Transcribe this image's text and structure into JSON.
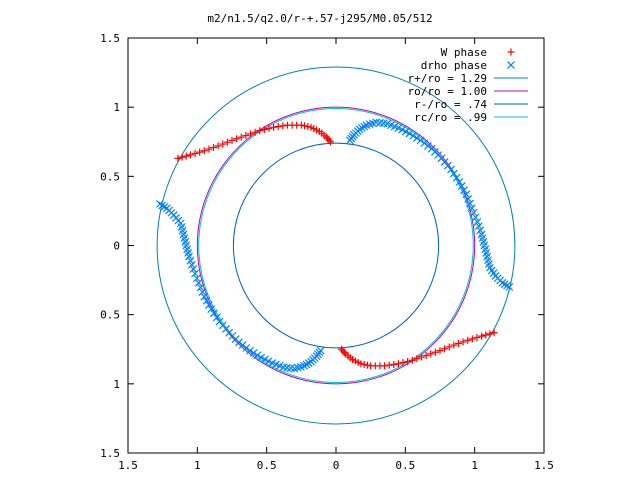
{
  "chart_data": {
    "type": "scatter",
    "title": "m2/n1.5/q2.0/r-+.57-j295/M0.05/512",
    "xlabel": "",
    "ylabel": "",
    "xlim": [
      -1.5,
      1.5
    ],
    "ylim": [
      -1.5,
      1.5
    ],
    "x_ticks": [
      -1.5,
      -1,
      -0.5,
      0,
      0.5,
      1,
      1.5
    ],
    "y_ticks": [
      -1.5,
      -1,
      -0.5,
      0,
      0.5,
      1,
      1.5
    ],
    "x_tick_labels": [
      "1.5",
      "1",
      "0.5",
      "0",
      "0.5",
      "1",
      "1.5"
    ],
    "y_tick_labels": [
      "1.5",
      "1",
      "0.5",
      "0",
      "0.5",
      "1",
      "1.5"
    ],
    "grid": false,
    "legend_position": "top-right",
    "series": [
      {
        "name": "W phase",
        "marker": "plus",
        "color": "#ff0000",
        "points": [
          [
            -1.14,
            0.63
          ],
          [
            -1.05,
            0.655
          ],
          [
            -0.95,
            0.685
          ],
          [
            -0.85,
            0.72
          ],
          [
            -0.75,
            0.76
          ],
          [
            -0.65,
            0.795
          ],
          [
            -0.55,
            0.83
          ],
          [
            -0.45,
            0.855
          ],
          [
            -0.35,
            0.87
          ],
          [
            -0.25,
            0.87
          ],
          [
            -0.18,
            0.855
          ],
          [
            -0.12,
            0.825
          ],
          [
            -0.07,
            0.785
          ],
          [
            -0.04,
            0.75
          ],
          [
            1.14,
            -0.63
          ],
          [
            1.05,
            -0.655
          ],
          [
            0.95,
            -0.685
          ],
          [
            0.85,
            -0.72
          ],
          [
            0.75,
            -0.76
          ],
          [
            0.65,
            -0.795
          ],
          [
            0.55,
            -0.83
          ],
          [
            0.45,
            -0.855
          ],
          [
            0.35,
            -0.87
          ],
          [
            0.25,
            -0.87
          ],
          [
            0.18,
            -0.855
          ],
          [
            0.12,
            -0.825
          ],
          [
            0.07,
            -0.785
          ],
          [
            0.04,
            -0.75
          ]
        ]
      },
      {
        "name": "drho phase",
        "marker": "cross",
        "color": "#0080ff",
        "points": [
          [
            -1.27,
            0.3
          ],
          [
            -1.22,
            0.27
          ],
          [
            -1.17,
            0.22
          ],
          [
            -1.12,
            0.16
          ],
          [
            -1.1,
            0.08
          ],
          [
            -1.08,
            0.0
          ],
          [
            -1.06,
            -0.08
          ],
          [
            -1.03,
            -0.17
          ],
          [
            -0.99,
            -0.27
          ],
          [
            -0.95,
            -0.37
          ],
          [
            -0.9,
            -0.46
          ],
          [
            -0.84,
            -0.55
          ],
          [
            -0.77,
            -0.63
          ],
          [
            -0.7,
            -0.7
          ],
          [
            -0.62,
            -0.76
          ],
          [
            -0.54,
            -0.81
          ],
          [
            -0.46,
            -0.85
          ],
          [
            -0.38,
            -0.88
          ],
          [
            -0.3,
            -0.89
          ],
          [
            -0.23,
            -0.87
          ],
          [
            -0.18,
            -0.84
          ],
          [
            -0.14,
            -0.8
          ],
          [
            -0.11,
            -0.76
          ],
          [
            1.25,
            -0.3
          ],
          [
            1.2,
            -0.27
          ],
          [
            1.15,
            -0.22
          ],
          [
            1.11,
            -0.16
          ],
          [
            1.09,
            -0.08
          ],
          [
            1.07,
            0.0
          ],
          [
            1.05,
            0.08
          ],
          [
            1.02,
            0.17
          ],
          [
            0.98,
            0.27
          ],
          [
            0.94,
            0.37
          ],
          [
            0.89,
            0.46
          ],
          [
            0.83,
            0.55
          ],
          [
            0.76,
            0.63
          ],
          [
            0.69,
            0.7
          ],
          [
            0.61,
            0.76
          ],
          [
            0.53,
            0.81
          ],
          [
            0.45,
            0.85
          ],
          [
            0.37,
            0.88
          ],
          [
            0.29,
            0.89
          ],
          [
            0.22,
            0.87
          ],
          [
            0.17,
            0.84
          ],
          [
            0.13,
            0.8
          ],
          [
            0.1,
            0.76
          ]
        ]
      },
      {
        "name": "r+/ro = 1.29",
        "type": "circle",
        "radius": 1.29,
        "color": "#0080b0"
      },
      {
        "name": "ro/ro = 1.00",
        "type": "circle",
        "radius": 1.0,
        "color": "#c000c0"
      },
      {
        "name": "r-/ro = .74",
        "type": "circle",
        "radius": 0.74,
        "color": "#0060c0"
      },
      {
        "name": "rc/ro = .99",
        "type": "circle",
        "radius": 0.99,
        "color": "#00c0e0"
      }
    ]
  }
}
